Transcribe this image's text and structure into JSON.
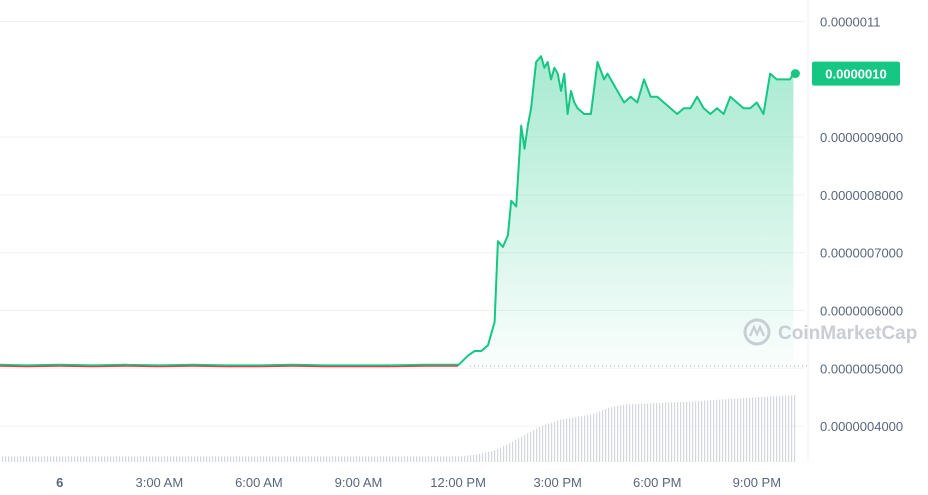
{
  "chart_data": {
    "type": "line",
    "y_ticks": [
      "0.0000011",
      "0.0000009000",
      "0.0000008000",
      "0.0000007000",
      "0.0000006000",
      "0.0000005000",
      "0.0000004000"
    ],
    "y_tick_values": [
      1.1e-06,
      9e-07,
      8e-07,
      7e-07,
      6e-07,
      5e-07,
      4e-07
    ],
    "ylim": [
      3.5e-07,
      1.12e-06
    ],
    "x_ticks": [
      "6",
      "3:00 AM",
      "6:00 AM",
      "9:00 AM",
      "12:00 PM",
      "3:00 PM",
      "6:00 PM",
      "9:00 PM"
    ],
    "x_tick_hours": [
      0,
      3,
      6,
      9,
      12,
      15,
      18,
      21
    ],
    "xlim_hours": [
      -1.8,
      22.3
    ],
    "current_price": "0.0000010",
    "current_price_value": 1.01e-06,
    "reference_price_value": 5.04e-07,
    "watermark": "CoinMarketCap",
    "colors": {
      "up": "#16c784",
      "down": "#ea3943",
      "badge": "#16c784",
      "grid": "#eff2f5"
    },
    "series": [
      {
        "x": [
          -1.8,
          -1.0,
          0,
          1,
          2,
          3,
          4,
          5,
          6,
          7,
          8,
          9,
          10,
          11,
          12,
          12.3,
          12.5,
          12.7,
          12.9,
          13.1,
          13.2,
          13.35,
          13.5,
          13.6,
          13.75,
          13.9,
          14.0,
          14.1,
          14.2,
          14.35,
          14.5,
          14.6,
          14.7,
          14.8,
          14.9,
          15.0,
          15.1,
          15.2,
          15.3,
          15.4,
          15.5,
          15.6,
          15.8,
          16.0,
          16.2,
          16.4,
          16.5,
          16.6,
          16.8,
          17.0,
          17.2,
          17.4,
          17.6,
          17.8,
          18.0,
          18.2,
          18.4,
          18.6,
          18.8,
          19.0,
          19.2,
          19.4,
          19.6,
          19.8,
          20.0,
          20.2,
          20.4,
          20.6,
          20.8,
          21.0,
          21.2,
          21.4,
          21.6,
          21.8,
          22.0,
          22.1
        ],
        "y": [
          5.05e-07,
          5.04e-07,
          5.05e-07,
          5.04e-07,
          5.05e-07,
          5.04e-07,
          5.05e-07,
          5.04e-07,
          5.04e-07,
          5.05e-07,
          5.04e-07,
          5.04e-07,
          5.04e-07,
          5.05e-07,
          5.05e-07,
          5.22e-07,
          5.3e-07,
          5.3e-07,
          5.4e-07,
          5.8e-07,
          7.2e-07,
          7.1e-07,
          7.3e-07,
          7.9e-07,
          7.8e-07,
          9.2e-07,
          8.8e-07,
          9.2e-07,
          9.5e-07,
          1.03e-06,
          1.04e-06,
          1.02e-06,
          1.03e-06,
          1e-06,
          1.02e-06,
          1.01e-06,
          9.8e-07,
          1.01e-06,
          9.4e-07,
          9.8e-07,
          9.6e-07,
          9.5e-07,
          9.4e-07,
          9.4e-07,
          1.03e-06,
          1e-06,
          1.01e-06,
          1e-06,
          9.8e-07,
          9.6e-07,
          9.7e-07,
          9.6e-07,
          1e-06,
          9.7e-07,
          9.7e-07,
          9.6e-07,
          9.5e-07,
          9.4e-07,
          9.5e-07,
          9.5e-07,
          9.7e-07,
          9.5e-07,
          9.4e-07,
          9.5e-07,
          9.4e-07,
          9.7e-07,
          9.6e-07,
          9.5e-07,
          9.5e-07,
          9.6e-07,
          9.4e-07,
          1.01e-06,
          1e-06,
          1e-06,
          1e-06,
          1.01e-06
        ]
      }
    ],
    "volume": {
      "x": [
        -1.8,
        12.0,
        12.5,
        13.0,
        13.5,
        14.0,
        14.5,
        15.0,
        15.5,
        16.0,
        16.5,
        17.0,
        18.0,
        19.0,
        20.0,
        21.0,
        22.1
      ],
      "v": [
        0.08,
        0.08,
        0.1,
        0.15,
        0.25,
        0.38,
        0.5,
        0.58,
        0.62,
        0.66,
        0.75,
        0.8,
        0.82,
        0.84,
        0.87,
        0.9,
        0.93
      ]
    }
  }
}
